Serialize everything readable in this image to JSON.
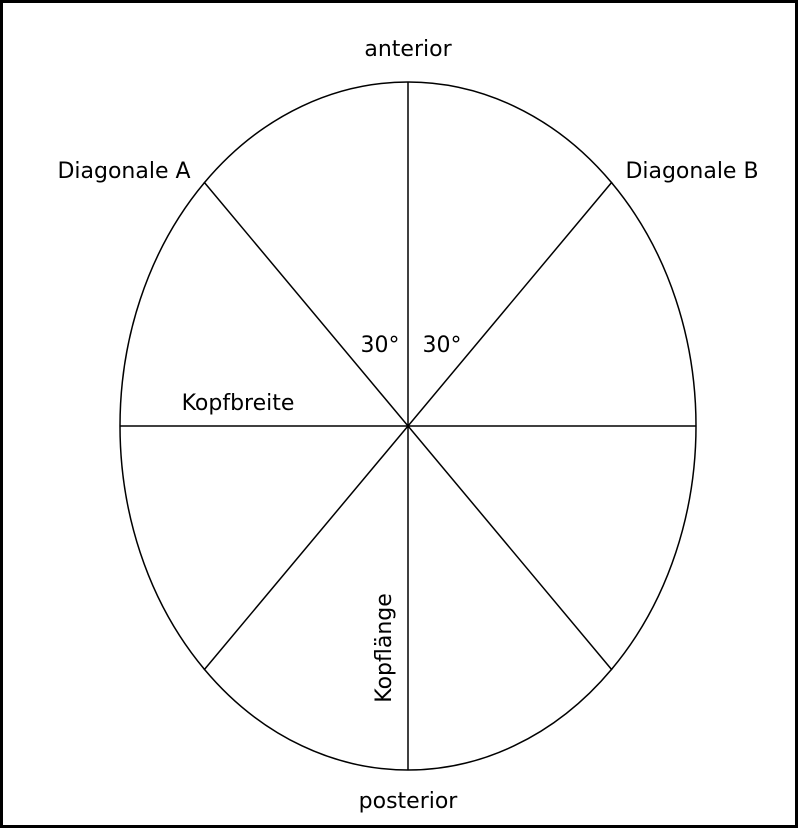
{
  "labels": {
    "anterior": "anterior",
    "posterior": "posterior",
    "diagonal_a": "Diagonale A",
    "diagonal_b": "Diagonale B",
    "width": "Kopfbreite",
    "length": "Kopflänge"
  },
  "angles": [
    "30°",
    "30°"
  ]
}
